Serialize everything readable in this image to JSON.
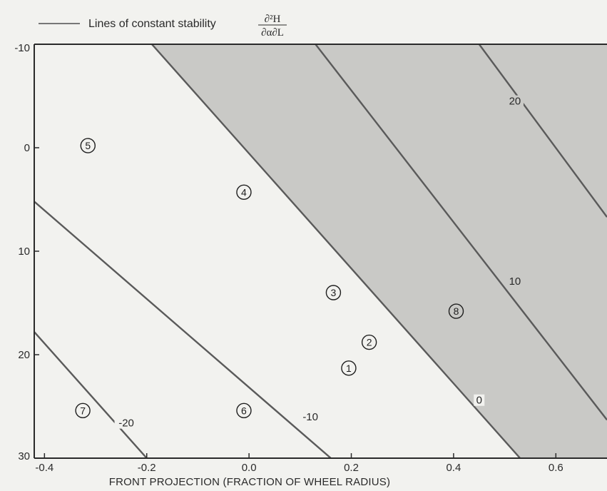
{
  "legend": {
    "label": "Lines of constant stability",
    "formula_numerator": "∂²H",
    "formula_denominator": "∂α∂L"
  },
  "chart_data": {
    "type": "contour",
    "xlabel": "FRONT PROJECTION (FRACTION OF WHEEL RADIUS)",
    "ylabel": "",
    "xlim": [
      -0.42,
      0.7
    ],
    "ylim": [
      30,
      -10
    ],
    "x_ticks": [
      -0.4,
      -0.2,
      0.0,
      0.2,
      0.4,
      0.6
    ],
    "x_tick_labels": [
      "-0.4",
      "-0.2",
      "0.0",
      "0.2",
      "0.4",
      "0.6"
    ],
    "y_ticks": [
      -10,
      0,
      10,
      20,
      30
    ],
    "y_tick_labels": [
      "-10",
      "0",
      "10",
      "20",
      "30"
    ],
    "shaded_region": "stability >= 0",
    "contours": [
      {
        "value": -20,
        "label": "-20",
        "x": [
          -0.42,
          -0.2
        ],
        "y": [
          17.8,
          30
        ],
        "label_at": [
          -0.24,
          26.8
        ]
      },
      {
        "value": -10,
        "label": "-10",
        "x": [
          -0.42,
          0.16
        ],
        "y": [
          5.2,
          30
        ],
        "label_at": [
          0.12,
          26.2
        ]
      },
      {
        "value": 0,
        "label": "0",
        "x": [
          -0.19,
          0.53
        ],
        "y": [
          -10,
          30
        ],
        "label_at": [
          0.45,
          24.6
        ]
      },
      {
        "value": 10,
        "label": "10",
        "x": [
          0.13,
          0.7
        ],
        "y": [
          -10,
          26.3
        ],
        "label_at": [
          0.52,
          13.1
        ]
      },
      {
        "value": 20,
        "label": "20",
        "x": [
          0.45,
          0.7
        ],
        "y": [
          -10,
          6.7
        ],
        "label_at": [
          0.52,
          -4.3
        ]
      }
    ],
    "points": [
      {
        "label": "1",
        "x": 0.195,
        "y": 21.3
      },
      {
        "label": "2",
        "x": 0.235,
        "y": 18.8
      },
      {
        "label": "3",
        "x": 0.165,
        "y": 14.0
      },
      {
        "label": "4",
        "x": -0.01,
        "y": 4.3
      },
      {
        "label": "5",
        "x": -0.315,
        "y": -0.2
      },
      {
        "label": "6",
        "x": -0.01,
        "y": 25.4
      },
      {
        "label": "7",
        "x": -0.325,
        "y": 25.4
      },
      {
        "label": "8",
        "x": 0.405,
        "y": 15.8
      }
    ]
  },
  "colors": {
    "background": "#f2f2ef",
    "shaded": "#c9c9c6",
    "contour": "#5a5a5a",
    "text": "#2a2a2a"
  }
}
